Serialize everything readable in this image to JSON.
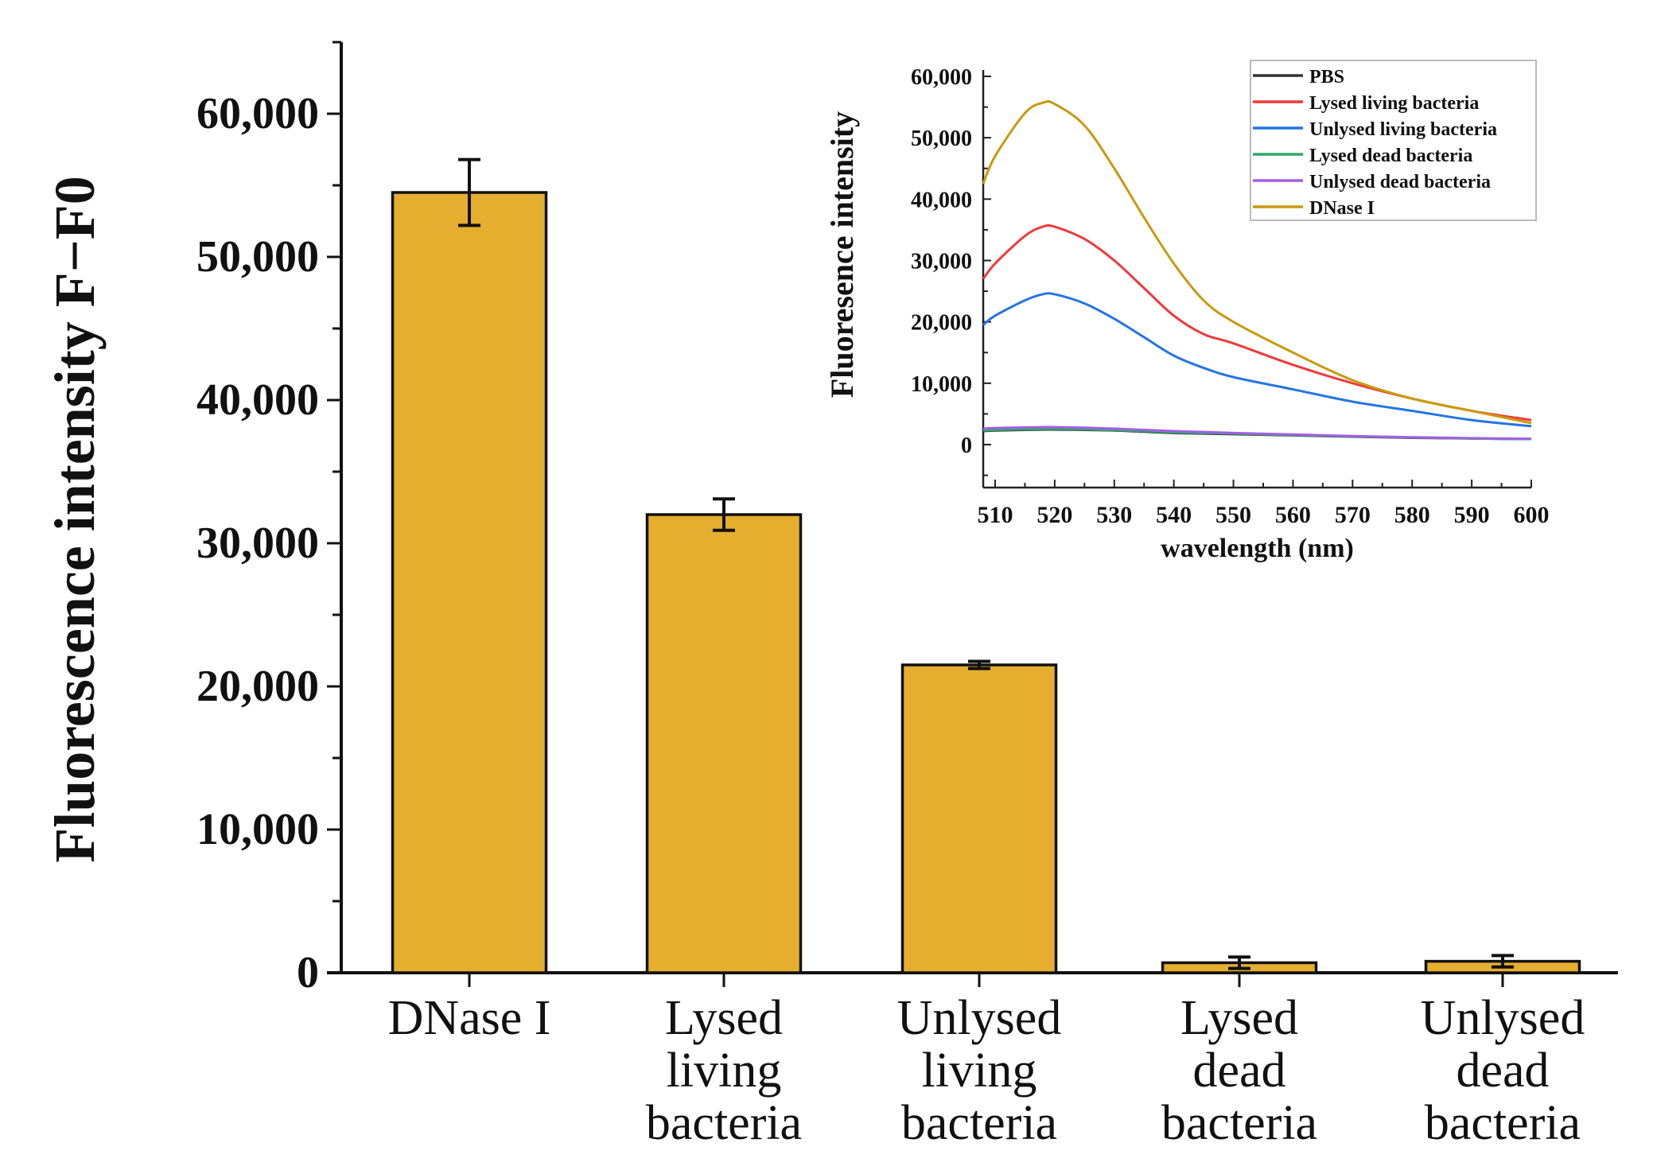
{
  "chart_data": [
    {
      "type": "bar",
      "title": "",
      "xlabel": "",
      "ylabel": "Fluorescence intensity F−F0",
      "ylim": [
        0,
        65000
      ],
      "yticks": [
        0,
        10000,
        20000,
        30000,
        40000,
        50000,
        60000
      ],
      "ytick_labels": [
        "0",
        "10,000",
        "20,000",
        "30,000",
        "40,000",
        "50,000",
        "60,000"
      ],
      "categories": [
        [
          "DNase I"
        ],
        [
          "Lysed",
          "living",
          "bacteria"
        ],
        [
          "Unlysed",
          "living",
          "bacteria"
        ],
        [
          "Lysed",
          "dead",
          "bacteria"
        ],
        [
          "Unlysed",
          "dead",
          "bacteria"
        ]
      ],
      "values": [
        54500,
        32000,
        21500,
        700,
        800
      ],
      "errors": [
        2300,
        1100,
        250,
        400,
        400
      ],
      "bar_color": "#E5AE2F",
      "grid": false
    },
    {
      "type": "line",
      "title": "",
      "xlabel": "wavelength (nm)",
      "ylabel": "Fluoresence intensity",
      "xlim": [
        508,
        600
      ],
      "ylim": [
        -7000,
        60000
      ],
      "xticks": [
        510,
        520,
        530,
        540,
        550,
        560,
        570,
        580,
        590,
        600
      ],
      "yticks": [
        0,
        10000,
        20000,
        30000,
        40000,
        50000,
        60000
      ],
      "ytick_labels": [
        "0",
        "10,000",
        "20,000",
        "30,000",
        "40,000",
        "50,000",
        "60,000"
      ],
      "legend_position": "top-right",
      "x": [
        508,
        510,
        515,
        518,
        520,
        525,
        530,
        535,
        540,
        545,
        550,
        560,
        570,
        580,
        590,
        600
      ],
      "series": [
        {
          "name": "PBS",
          "color": "#333333",
          "values": [
            2200,
            2300,
            2400,
            2450,
            2450,
            2400,
            2300,
            2100,
            1900,
            1800,
            1700,
            1500,
            1300,
            1100,
            1000,
            900
          ]
        },
        {
          "name": "Lysed living bacteria",
          "color": "#F0393A",
          "values": [
            27000,
            29500,
            34000,
            35500,
            35500,
            33500,
            30000,
            25500,
            21000,
            18000,
            16500,
            13000,
            10000,
            7500,
            5500,
            4000
          ]
        },
        {
          "name": "Unlysed living bacteria",
          "color": "#2474E6",
          "values": [
            19500,
            21000,
            23500,
            24500,
            24500,
            23000,
            20500,
            17500,
            14500,
            12500,
            11000,
            9000,
            7000,
            5500,
            4000,
            3000
          ]
        },
        {
          "name": "Lysed dead bacteria",
          "color": "#2DA868",
          "values": [
            2300,
            2400,
            2500,
            2550,
            2550,
            2500,
            2350,
            2200,
            2000,
            1900,
            1800,
            1550,
            1350,
            1150,
            1000,
            900
          ]
        },
        {
          "name": "Unlysed dead bacteria",
          "color": "#A45EE5",
          "values": [
            2600,
            2700,
            2800,
            2850,
            2850,
            2750,
            2600,
            2400,
            2200,
            2050,
            1900,
            1650,
            1400,
            1200,
            1050,
            950
          ]
        },
        {
          "name": "DNase I",
          "color": "#C9990F",
          "values": [
            42500,
            47000,
            54000,
            55700,
            55500,
            52000,
            45000,
            37000,
            29500,
            23500,
            20000,
            15000,
            10500,
            7500,
            5500,
            3500
          ]
        }
      ]
    }
  ]
}
